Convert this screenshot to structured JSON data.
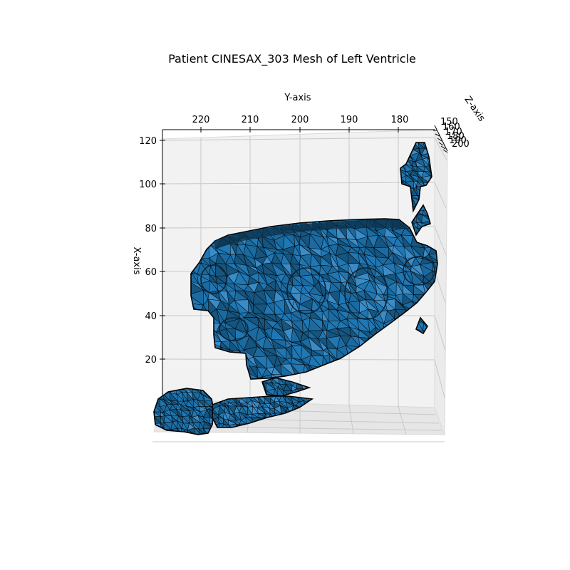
{
  "chart_data": {
    "type": "3d-mesh",
    "title": "Patient CINESAX_303 Mesh of Left Ventricle",
    "ylabel_axis": "Y-axis",
    "xlabel_axis": "X-axis",
    "zlabel_axis": "Z-axis",
    "y_ticks": [
      "220",
      "210",
      "200",
      "190",
      "180"
    ],
    "x_ticks": [
      "120",
      "100",
      "80",
      "60",
      "40",
      "20"
    ],
    "z_ticks": [
      "150",
      "160",
      "170",
      "180",
      "190",
      "200"
    ],
    "mesh_color": "#1f77b4",
    "edge_color": "#000000",
    "pane_color": "#f2f2f2",
    "grid": true
  }
}
